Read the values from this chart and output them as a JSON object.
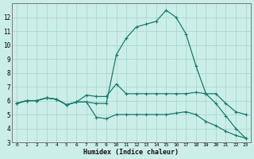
{
  "xlabel": "Humidex (Indice chaleur)",
  "x": [
    0,
    1,
    2,
    3,
    4,
    5,
    6,
    7,
    8,
    9,
    10,
    11,
    12,
    13,
    14,
    15,
    16,
    17,
    18,
    19,
    20,
    21,
    22,
    23
  ],
  "line_high": [
    5.8,
    6.0,
    6.0,
    6.2,
    6.1,
    5.7,
    5.9,
    5.9,
    5.8,
    5.8,
    9.3,
    10.5,
    11.3,
    11.5,
    11.7,
    12.5,
    12.0,
    10.8,
    8.5,
    6.5,
    5.8,
    4.9,
    4.0,
    3.3
  ],
  "line_mid": [
    5.8,
    6.0,
    6.0,
    6.2,
    6.1,
    5.7,
    5.9,
    6.4,
    6.3,
    6.3,
    7.2,
    6.5,
    6.5,
    6.5,
    6.5,
    6.5,
    6.5,
    6.5,
    6.6,
    6.5,
    6.5,
    5.8,
    5.2,
    5.0
  ],
  "line_low": [
    5.8,
    6.0,
    6.0,
    6.2,
    6.1,
    5.7,
    5.9,
    5.9,
    4.8,
    4.7,
    5.0,
    5.0,
    5.0,
    5.0,
    5.0,
    5.0,
    5.1,
    5.2,
    5.0,
    4.5,
    4.2,
    3.8,
    3.5,
    3.3
  ],
  "line_color": "#1a7a6e",
  "bg_color": "#cceee8",
  "grid_color": "#aad8d0",
  "ylim": [
    3,
    13
  ],
  "yticks": [
    3,
    4,
    5,
    6,
    7,
    8,
    9,
    10,
    11,
    12
  ],
  "xlim": [
    -0.5,
    23.5
  ],
  "xticks": [
    0,
    1,
    2,
    3,
    4,
    5,
    6,
    7,
    8,
    9,
    10,
    11,
    12,
    13,
    14,
    15,
    16,
    17,
    18,
    19,
    20,
    21,
    22,
    23
  ]
}
